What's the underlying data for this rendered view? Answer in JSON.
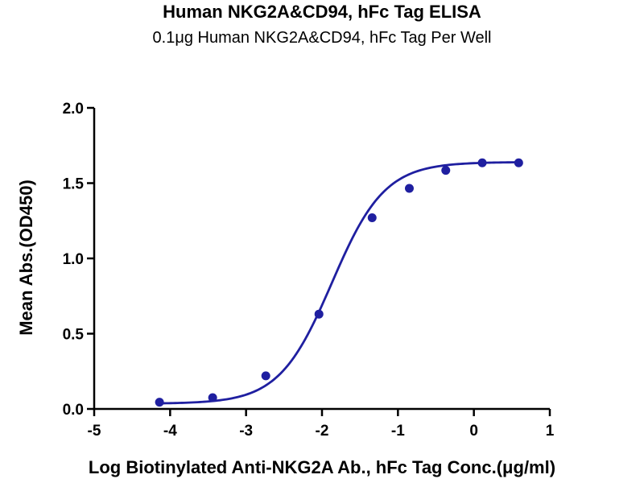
{
  "chart_data": {
    "type": "scatter",
    "title": "Human NKG2A&CD94, hFc Tag ELISA",
    "subtitle": "0.1μg Human NKG2A&CD94, hFc Tag Per Well",
    "xlabel": "Log Biotinylated Anti-NKG2A Ab., hFc Tag Conc.(μg/ml)",
    "ylabel": "Mean Abs.(OD450)",
    "xlim": [
      -5,
      1
    ],
    "ylim": [
      0,
      2.0
    ],
    "x_ticks": [
      "-5",
      "-4",
      "-3",
      "-2",
      "-1",
      "0",
      "1"
    ],
    "y_ticks": [
      "0.0",
      "0.5",
      "1.0",
      "1.5",
      "2.0"
    ],
    "grid": false,
    "color": "#1f1fa0",
    "series": [
      {
        "x": [
          -4.14,
          -3.44,
          -2.74,
          -2.04,
          -1.34,
          -0.85,
          -0.37,
          0.11,
          0.59
        ],
        "y": [
          0.045,
          0.075,
          0.22,
          0.63,
          1.27,
          1.465,
          1.585,
          1.635,
          1.635
        ]
      }
    ],
    "fit_curve": {
      "model": "4PL",
      "bottom": 0.035,
      "top": 1.64,
      "log_ec50": -1.87,
      "hill_slope": 1.25
    }
  }
}
